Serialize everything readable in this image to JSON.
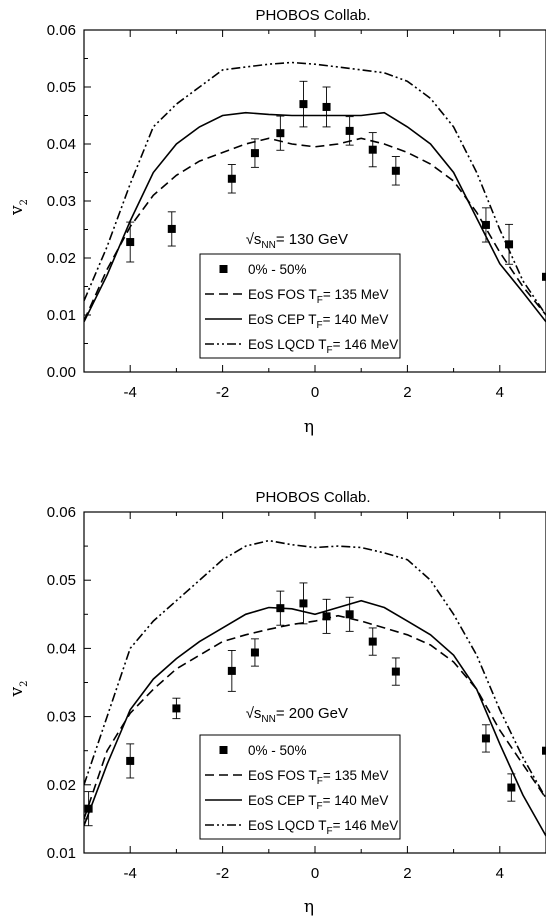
{
  "chart_data": [
    {
      "type": "line",
      "title": "PHOBOS Collab.",
      "xlabel": "η",
      "ylabel": "v",
      "ylabel_sub": "2",
      "xlim": [
        -5,
        5
      ],
      "ylim": [
        0.0,
        0.06
      ],
      "xticks": [
        -4,
        -2,
        0,
        2,
        4
      ],
      "yticks": [
        0.0,
        0.01,
        0.02,
        0.03,
        0.04,
        0.05,
        0.06
      ],
      "ytick_labels": [
        "0.00",
        "0.01",
        "0.02",
        "0.03",
        "0.04",
        "0.05",
        "0.06"
      ],
      "annotation": {
        "prefix": "√s",
        "sub": "NN",
        "suffix": "= 130 GeV",
        "x": -1.5,
        "y": 0.0225
      },
      "legend": {
        "placement": "bottom-center",
        "entries": [
          {
            "text": "0% - 50%"
          },
          {
            "text": "EoS FOS T",
            "sub": "F",
            "suffix": "= 135 MeV"
          },
          {
            "text": "EoS CEP T",
            "sub": "F",
            "suffix": "=  140 MeV"
          },
          {
            "text": "EoS LQCD T",
            "sub": "F",
            "suffix": "= 146 MeV"
          }
        ]
      },
      "points": {
        "x": [
          -4.0,
          -3.1,
          -1.8,
          -1.3,
          -0.75,
          -0.25,
          0.25,
          0.75,
          1.25,
          1.75,
          3.7,
          4.2,
          5.0
        ],
        "y": [
          0.0228,
          0.0251,
          0.0339,
          0.0384,
          0.0419,
          0.047,
          0.0465,
          0.0423,
          0.039,
          0.0353,
          0.0258,
          0.0224,
          0.0167
        ],
        "err": [
          0.0035,
          0.003,
          0.0025,
          0.0025,
          0.003,
          0.004,
          0.0035,
          0.0025,
          0.003,
          0.0025,
          0.003,
          0.0035,
          0.0
        ]
      },
      "series": [
        {
          "style": "dash",
          "x": [
            -5,
            -4.5,
            -4,
            -3.5,
            -3,
            -2.5,
            -2,
            -1.5,
            -1,
            -0.5,
            0,
            0.5,
            1,
            1.5,
            2,
            2.5,
            3,
            3.5,
            4,
            4.5,
            5
          ],
          "y": [
            0.009,
            0.018,
            0.0255,
            0.031,
            0.0345,
            0.037,
            0.0385,
            0.04,
            0.041,
            0.04,
            0.0395,
            0.04,
            0.041,
            0.04,
            0.0385,
            0.0365,
            0.0335,
            0.028,
            0.021,
            0.015,
            0.01
          ]
        },
        {
          "style": "solid",
          "x": [
            -5,
            -4.5,
            -4,
            -3.5,
            -3,
            -2.5,
            -2,
            -1.5,
            -1,
            -0.5,
            0,
            0.5,
            1,
            1.5,
            2,
            2.5,
            3,
            3.5,
            4,
            4.5,
            5
          ],
          "y": [
            0.0088,
            0.017,
            0.0265,
            0.035,
            0.04,
            0.043,
            0.045,
            0.0455,
            0.0452,
            0.045,
            0.045,
            0.045,
            0.045,
            0.0455,
            0.043,
            0.04,
            0.035,
            0.027,
            0.019,
            0.014,
            0.0088
          ]
        },
        {
          "style": "dash-dot-dot",
          "x": [
            -5,
            -4.5,
            -4,
            -3.5,
            -3,
            -2.5,
            -2,
            -1.5,
            -1,
            -0.5,
            0,
            0.5,
            1,
            1.5,
            2,
            2.5,
            3,
            3.5,
            4,
            4.5,
            5
          ],
          "y": [
            0.0125,
            0.022,
            0.033,
            0.043,
            0.047,
            0.05,
            0.053,
            0.0535,
            0.054,
            0.0543,
            0.054,
            0.0535,
            0.053,
            0.0525,
            0.051,
            0.048,
            0.043,
            0.035,
            0.025,
            0.016,
            0.01
          ]
        }
      ]
    },
    {
      "type": "line",
      "title": "PHOBOS Collab.",
      "xlabel": "η",
      "ylabel": "v",
      "ylabel_sub": "2",
      "xlim": [
        -5,
        5
      ],
      "ylim": [
        0.01,
        0.06
      ],
      "xticks": [
        -4,
        -2,
        0,
        2,
        4
      ],
      "yticks": [
        0.01,
        0.02,
        0.03,
        0.04,
        0.05,
        0.06
      ],
      "ytick_labels": [
        "0.01",
        "0.02",
        "0.03",
        "0.04",
        "0.05",
        "0.06"
      ],
      "annotation": {
        "prefix": "√s",
        "sub": "NN",
        "suffix": "= 200 GeV",
        "x": -1.5,
        "y": 0.0298
      },
      "legend": {
        "placement": "bottom-center",
        "entries": [
          {
            "text": "0% - 50%"
          },
          {
            "text": "EoS FOS T",
            "sub": "F",
            "suffix": "= 135 MeV"
          },
          {
            "text": "EoS CEP T",
            "sub": "F",
            "suffix": "=  140 MeV"
          },
          {
            "text": "EoS LQCD T",
            "sub": "F",
            "suffix": "= 146 MeV"
          }
        ]
      },
      "points": {
        "x": [
          -4.9,
          -4.0,
          -3.0,
          -1.8,
          -1.3,
          -0.75,
          -0.25,
          0.25,
          0.75,
          1.25,
          1.75,
          3.7,
          4.25,
          5.0
        ],
        "y": [
          0.0165,
          0.0235,
          0.0312,
          0.0367,
          0.0394,
          0.0459,
          0.0466,
          0.0447,
          0.045,
          0.041,
          0.0366,
          0.0268,
          0.0196,
          0.025
        ],
        "err": [
          0.0025,
          0.0025,
          0.0015,
          0.003,
          0.002,
          0.0025,
          0.003,
          0.0025,
          0.0025,
          0.002,
          0.002,
          0.002,
          0.002,
          0.0
        ]
      },
      "series": [
        {
          "style": "dash",
          "x": [
            -5,
            -4.5,
            -4,
            -3.5,
            -3,
            -2.5,
            -2,
            -1.5,
            -1,
            -0.5,
            0,
            0.5,
            1,
            1.5,
            2,
            2.5,
            3,
            3.5,
            4,
            4.5,
            5
          ],
          "y": [
            0.015,
            0.025,
            0.0305,
            0.034,
            0.037,
            0.039,
            0.041,
            0.042,
            0.0428,
            0.0435,
            0.044,
            0.0448,
            0.044,
            0.043,
            0.042,
            0.0405,
            0.038,
            0.034,
            0.028,
            0.023,
            0.018
          ]
        },
        {
          "style": "solid",
          "x": [
            -5,
            -4.5,
            -4,
            -3.5,
            -3,
            -2.5,
            -2,
            -1.5,
            -1,
            -0.5,
            0,
            0.5,
            1,
            1.5,
            2,
            2.5,
            3,
            3.5,
            4,
            4.5,
            5
          ],
          "y": [
            0.014,
            0.023,
            0.031,
            0.0355,
            0.0385,
            0.041,
            0.043,
            0.045,
            0.046,
            0.0458,
            0.045,
            0.046,
            0.047,
            0.046,
            0.044,
            0.042,
            0.039,
            0.034,
            0.026,
            0.0185,
            0.0125
          ]
        },
        {
          "style": "dash-dot-dot",
          "x": [
            -5,
            -4.5,
            -4,
            -3.5,
            -3,
            -2.5,
            -2,
            -1.5,
            -1,
            -0.5,
            0,
            0.5,
            1,
            1.5,
            2,
            2.5,
            3,
            3.5,
            4,
            4.5,
            5
          ],
          "y": [
            0.02,
            0.03,
            0.04,
            0.044,
            0.047,
            0.05,
            0.053,
            0.055,
            0.0558,
            0.0552,
            0.0548,
            0.055,
            0.0548,
            0.054,
            0.053,
            0.05,
            0.045,
            0.039,
            0.031,
            0.024,
            0.018
          ]
        }
      ]
    }
  ]
}
